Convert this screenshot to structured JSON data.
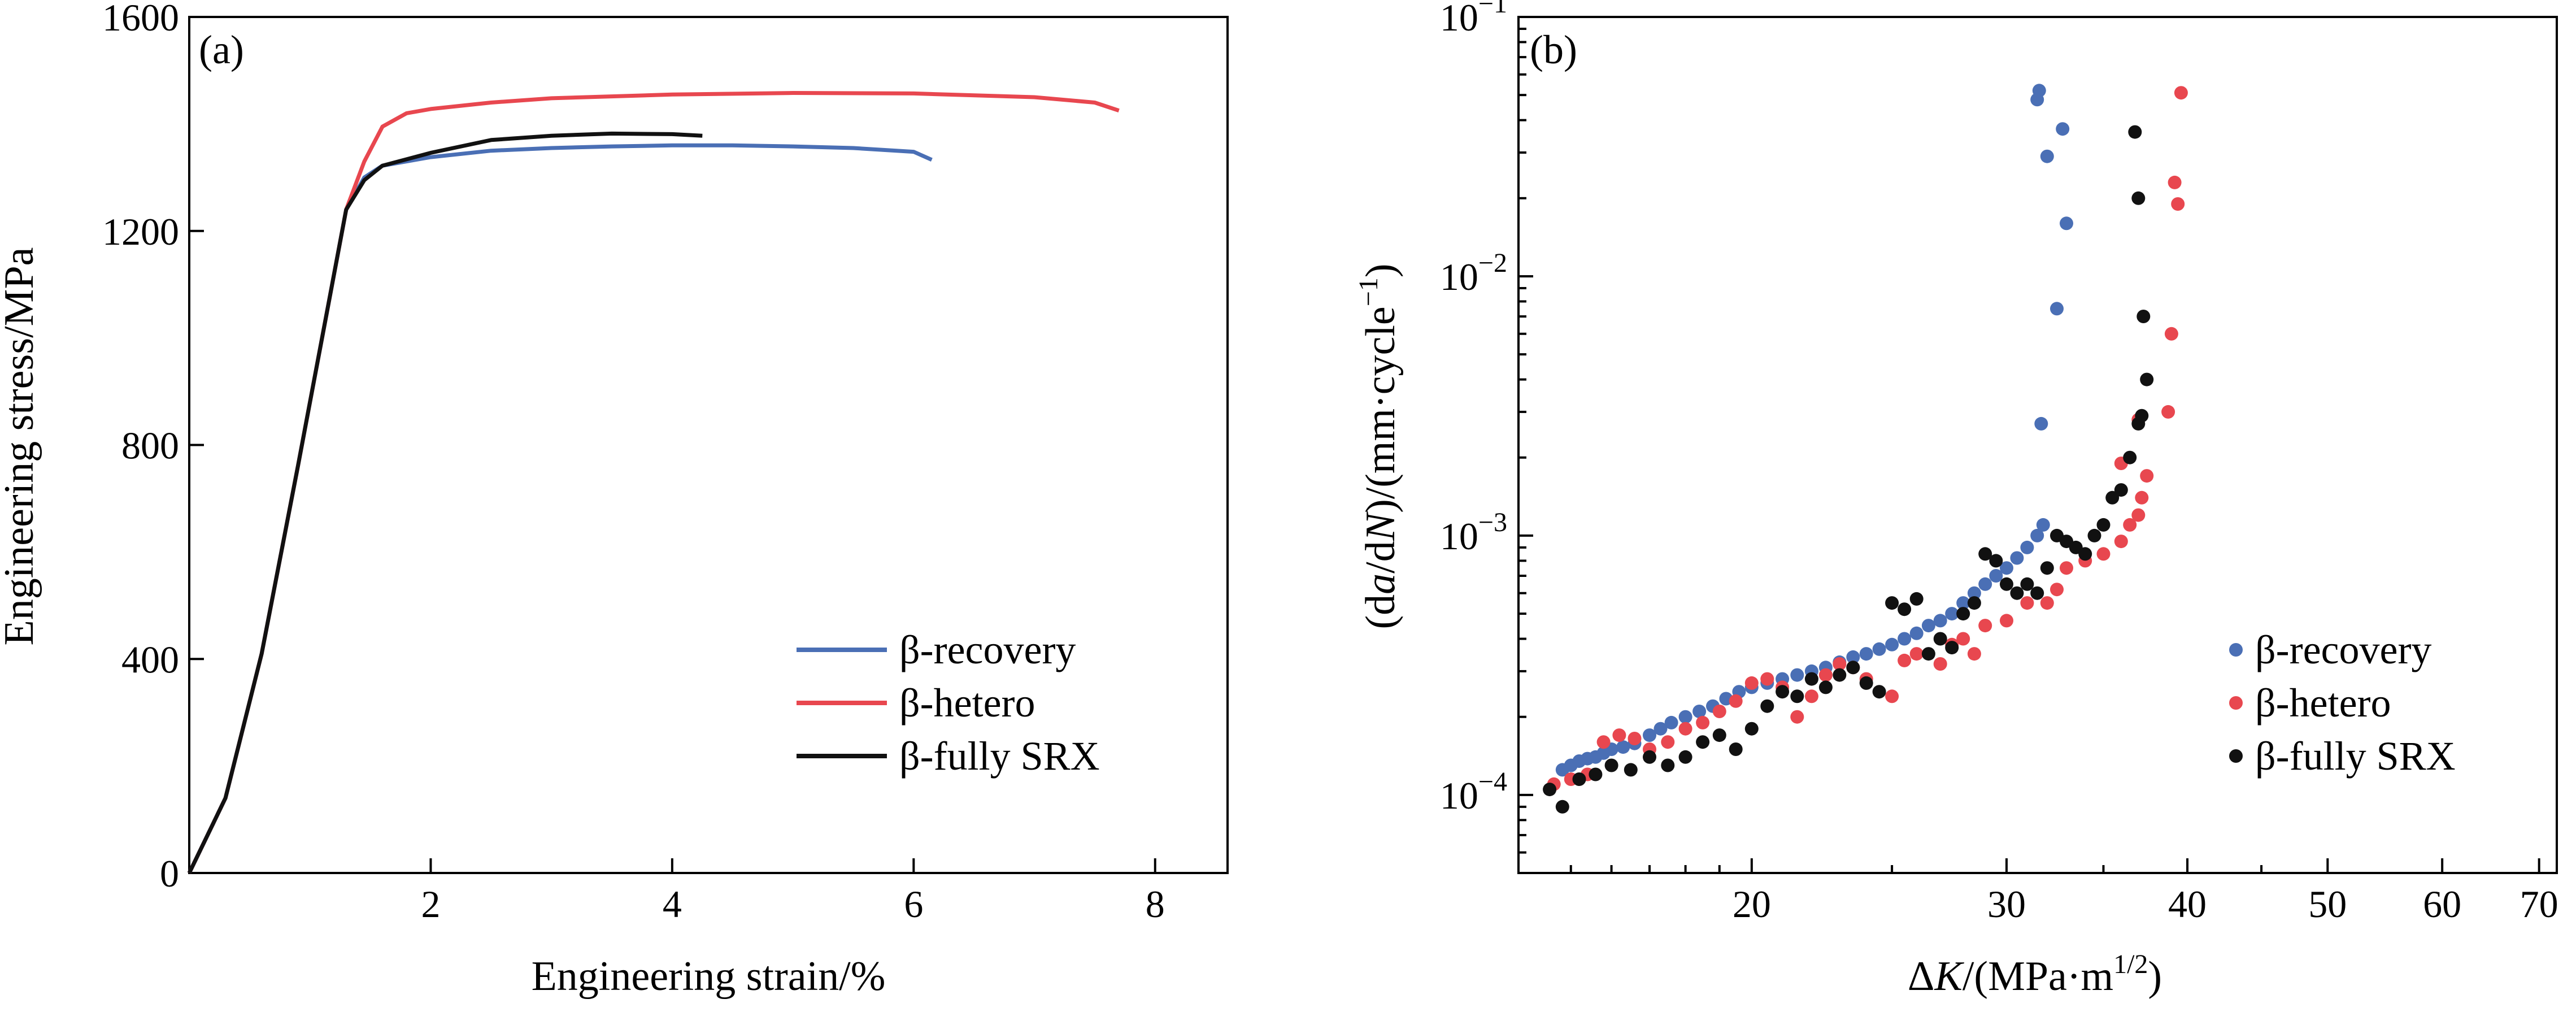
{
  "chart_data": [
    {
      "panel": "(a)",
      "type": "line",
      "xlabel": "Engineering strain/%",
      "ylabel": "Engineering stress/MPa",
      "xlim": [
        0,
        8.6
      ],
      "ylim": [
        0,
        1600
      ],
      "x_ticks": [
        "2",
        "4",
        "6",
        "8"
      ],
      "y_ticks": [
        "0",
        "400",
        "800",
        "1200",
        "1600"
      ],
      "legend_position": "bottom-right",
      "grid": false,
      "series": [
        {
          "name": "β-recovery",
          "color": "#4a6fb5",
          "points": [
            [
              0,
              0
            ],
            [
              0.3,
              140
            ],
            [
              0.6,
              410
            ],
            [
              0.9,
              760
            ],
            [
              1.15,
              1060
            ],
            [
              1.3,
              1240
            ],
            [
              1.45,
              1300
            ],
            [
              1.6,
              1322
            ],
            [
              2.0,
              1338
            ],
            [
              2.5,
              1350
            ],
            [
              3.0,
              1355
            ],
            [
              3.5,
              1358
            ],
            [
              4.0,
              1360
            ],
            [
              4.5,
              1360
            ],
            [
              5.0,
              1358
            ],
            [
              5.5,
              1355
            ],
            [
              6.0,
              1348
            ],
            [
              6.15,
              1333
            ]
          ]
        },
        {
          "name": "β-hetero",
          "color": "#e8474f",
          "points": [
            [
              0,
              0
            ],
            [
              0.3,
              140
            ],
            [
              0.6,
              410
            ],
            [
              0.9,
              760
            ],
            [
              1.15,
              1060
            ],
            [
              1.3,
              1240
            ],
            [
              1.45,
              1330
            ],
            [
              1.6,
              1395
            ],
            [
              1.8,
              1420
            ],
            [
              2.0,
              1428
            ],
            [
              2.5,
              1440
            ],
            [
              3.0,
              1448
            ],
            [
              4.0,
              1455
            ],
            [
              5.0,
              1458
            ],
            [
              6.0,
              1457
            ],
            [
              7.0,
              1450
            ],
            [
              7.5,
              1440
            ],
            [
              7.7,
              1425
            ]
          ]
        },
        {
          "name": "β-fully SRX",
          "color": "#111111",
          "points": [
            [
              0,
              0
            ],
            [
              0.3,
              140
            ],
            [
              0.6,
              410
            ],
            [
              0.9,
              760
            ],
            [
              1.15,
              1060
            ],
            [
              1.3,
              1240
            ],
            [
              1.45,
              1295
            ],
            [
              1.6,
              1322
            ],
            [
              2.0,
              1346
            ],
            [
              2.5,
              1370
            ],
            [
              3.0,
              1378
            ],
            [
              3.5,
              1382
            ],
            [
              4.0,
              1381
            ],
            [
              4.25,
              1378
            ]
          ]
        }
      ]
    },
    {
      "panel": "(b)",
      "type": "scatter",
      "xlabel": "ΔK/(MPa·m1/2)",
      "ylabel": "(da/dN)/(mm·cycle−1)",
      "x_scale": "log",
      "y_scale": "log",
      "xlim": [
        13.8,
        72
      ],
      "ylim": [
        5e-05,
        0.1
      ],
      "x_ticks": [
        "20",
        "30",
        "40",
        "50",
        "60",
        "70"
      ],
      "y_ticks": [
        "10-4",
        "10-3",
        "10-2",
        "10-1"
      ],
      "legend_position": "bottom-right",
      "grid": false,
      "series": [
        {
          "name": "β-recovery",
          "color": "#4a6fb5",
          "points": [
            [
              14.8,
              0.000125
            ],
            [
              15.0,
              0.00013
            ],
            [
              15.2,
              0.000135
            ],
            [
              15.4,
              0.000138
            ],
            [
              15.6,
              0.00014
            ],
            [
              15.8,
              0.000145
            ],
            [
              16.0,
              0.00015
            ],
            [
              16.3,
              0.000153
            ],
            [
              16.6,
              0.000158
            ],
            [
              17.0,
              0.00017
            ],
            [
              17.3,
              0.00018
            ],
            [
              17.6,
              0.00019
            ],
            [
              18.0,
              0.0002
            ],
            [
              18.4,
              0.00021
            ],
            [
              18.8,
              0.00022
            ],
            [
              19.2,
              0.000235
            ],
            [
              19.6,
              0.00025
            ],
            [
              20.0,
              0.00026
            ],
            [
              20.5,
              0.00027
            ],
            [
              21.0,
              0.00028
            ],
            [
              21.5,
              0.00029
            ],
            [
              22.0,
              0.0003
            ],
            [
              22.5,
              0.00031
            ],
            [
              23.0,
              0.000325
            ],
            [
              23.5,
              0.00034
            ],
            [
              24.0,
              0.00035
            ],
            [
              24.5,
              0.000365
            ],
            [
              25.0,
              0.00038
            ],
            [
              25.5,
              0.0004
            ],
            [
              26.0,
              0.00042
            ],
            [
              26.5,
              0.00045
            ],
            [
              27.0,
              0.00047
            ],
            [
              27.5,
              0.0005
            ],
            [
              28.0,
              0.00055
            ],
            [
              28.5,
              0.0006
            ],
            [
              29.0,
              0.00065
            ],
            [
              29.5,
              0.0007
            ],
            [
              30.0,
              0.00075
            ],
            [
              30.5,
              0.00082
            ],
            [
              31.0,
              0.0009
            ],
            [
              31.5,
              0.001
            ],
            [
              31.8,
              0.0011
            ],
            [
              31.7,
              0.0027
            ],
            [
              32.5,
              0.0075
            ],
            [
              33.0,
              0.016
            ],
            [
              32.0,
              0.029
            ],
            [
              32.8,
              0.037
            ],
            [
              31.5,
              0.048
            ],
            [
              31.6,
              0.052
            ]
          ]
        },
        {
          "name": "β-hetero",
          "color": "#e8474f",
          "points": [
            [
              14.6,
              0.00011
            ],
            [
              15.0,
              0.000115
            ],
            [
              15.4,
              0.00012
            ],
            [
              15.8,
              0.00016
            ],
            [
              16.2,
              0.00017
            ],
            [
              16.6,
              0.000165
            ],
            [
              17.0,
              0.00015
            ],
            [
              17.5,
              0.00016
            ],
            [
              18.0,
              0.00018
            ],
            [
              18.5,
              0.00019
            ],
            [
              19.0,
              0.00021
            ],
            [
              19.5,
              0.00023
            ],
            [
              20.0,
              0.00027
            ],
            [
              20.5,
              0.00028
            ],
            [
              21.0,
              0.00026
            ],
            [
              21.5,
              0.0002
            ],
            [
              22.0,
              0.00024
            ],
            [
              22.5,
              0.00029
            ],
            [
              23.0,
              0.00032
            ],
            [
              23.5,
              0.00031
            ],
            [
              24.0,
              0.00028
            ],
            [
              25.0,
              0.00024
            ],
            [
              25.5,
              0.00033
            ],
            [
              26.0,
              0.00035
            ],
            [
              27.0,
              0.00032
            ],
            [
              27.5,
              0.00038
            ],
            [
              28.0,
              0.0004
            ],
            [
              28.5,
              0.00035
            ],
            [
              29.0,
              0.00045
            ],
            [
              30.0,
              0.00047
            ],
            [
              31.0,
              0.00055
            ],
            [
              32.0,
              0.00055
            ],
            [
              32.5,
              0.00062
            ],
            [
              33.0,
              0.00075
            ],
            [
              34.0,
              0.0008
            ],
            [
              35.0,
              0.00085
            ],
            [
              36.0,
              0.00095
            ],
            [
              36.5,
              0.0011
            ],
            [
              37.0,
              0.0012
            ],
            [
              37.2,
              0.0014
            ],
            [
              37.5,
              0.0017
            ],
            [
              36.0,
              0.0019
            ],
            [
              37.0,
              0.0028
            ],
            [
              38.8,
              0.003
            ],
            [
              39.0,
              0.006
            ],
            [
              39.4,
              0.019
            ],
            [
              39.2,
              0.023
            ],
            [
              39.6,
              0.051
            ]
          ]
        },
        {
          "name": "β-fully SRX",
          "color": "#111111",
          "points": [
            [
              14.5,
              0.000105
            ],
            [
              14.8,
              9e-05
            ],
            [
              15.2,
              0.000115
            ],
            [
              15.6,
              0.00012
            ],
            [
              16.0,
              0.00013
            ],
            [
              16.5,
              0.000125
            ],
            [
              17.0,
              0.00014
            ],
            [
              17.5,
              0.00013
            ],
            [
              18.0,
              0.00014
            ],
            [
              18.5,
              0.00016
            ],
            [
              19.0,
              0.00017
            ],
            [
              19.5,
              0.00015
            ],
            [
              20.0,
              0.00018
            ],
            [
              20.5,
              0.00022
            ],
            [
              21.0,
              0.00025
            ],
            [
              21.5,
              0.00024
            ],
            [
              22.0,
              0.00028
            ],
            [
              22.5,
              0.00026
            ],
            [
              23.0,
              0.00029
            ],
            [
              23.5,
              0.00031
            ],
            [
              24.0,
              0.00027
            ],
            [
              24.5,
              0.00025
            ],
            [
              25.0,
              0.00055
            ],
            [
              25.5,
              0.00052
            ],
            [
              26.0,
              0.00057
            ],
            [
              26.5,
              0.00035
            ],
            [
              27.0,
              0.0004
            ],
            [
              27.5,
              0.00037
            ],
            [
              28.0,
              0.0005
            ],
            [
              28.5,
              0.00055
            ],
            [
              29.0,
              0.00085
            ],
            [
              29.5,
              0.0008
            ],
            [
              30.0,
              0.00065
            ],
            [
              30.5,
              0.0006
            ],
            [
              31.0,
              0.00065
            ],
            [
              31.5,
              0.0006
            ],
            [
              32.0,
              0.00075
            ],
            [
              32.5,
              0.001
            ],
            [
              33.0,
              0.00095
            ],
            [
              33.5,
              0.0009
            ],
            [
              34.0,
              0.00085
            ],
            [
              34.5,
              0.001
            ],
            [
              35.0,
              0.0011
            ],
            [
              35.5,
              0.0014
            ],
            [
              36.0,
              0.0015
            ],
            [
              36.5,
              0.002
            ],
            [
              37.0,
              0.0027
            ],
            [
              37.2,
              0.0029
            ],
            [
              37.5,
              0.004
            ],
            [
              37.3,
              0.007
            ],
            [
              37.0,
              0.02
            ],
            [
              36.8,
              0.036
            ]
          ]
        }
      ]
    }
  ]
}
